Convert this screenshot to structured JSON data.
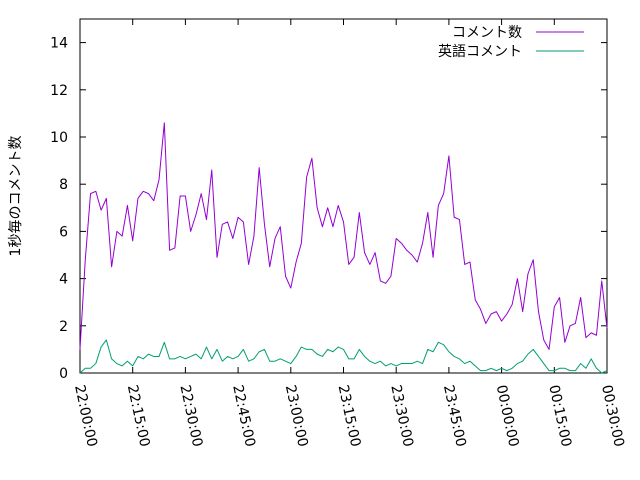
{
  "chart_data": {
    "type": "line",
    "title": "",
    "xlabel": "",
    "ylabel": "1秒毎のコメント数",
    "ylim": [
      0,
      15
    ],
    "y_ticks": [
      "0",
      "2",
      "4",
      "6",
      "8",
      "10",
      "12",
      "14"
    ],
    "x_tick_labels": [
      "22:00:00",
      "22:15:00",
      "22:30:00",
      "22:45:00",
      "23:00:00",
      "23:15:00",
      "23:30:00",
      "23:45:00",
      "00:00:00",
      "00:15:00",
      "00:30:00"
    ],
    "grid": false,
    "legend_position": "top-right",
    "series": [
      {
        "name": "コメント数",
        "color": "#9400d3",
        "values": [
          1.0,
          4.8,
          7.6,
          7.7,
          6.9,
          7.4,
          4.5,
          6.0,
          5.8,
          7.1,
          5.6,
          7.4,
          7.7,
          7.6,
          7.3,
          8.2,
          10.6,
          5.2,
          5.3,
          7.5,
          7.5,
          6.0,
          6.7,
          7.6,
          6.5,
          8.6,
          4.9,
          6.3,
          6.4,
          5.7,
          6.6,
          6.4,
          4.6,
          5.8,
          8.7,
          6.3,
          4.5,
          5.7,
          6.2,
          4.1,
          3.6,
          4.7,
          5.5,
          8.3,
          9.1,
          7.0,
          6.2,
          7.0,
          6.2,
          7.1,
          6.4,
          4.6,
          4.9,
          6.8,
          5.1,
          4.6,
          5.1,
          3.9,
          3.8,
          4.1,
          5.7,
          5.5,
          5.2,
          5.0,
          4.7,
          5.5,
          6.8,
          4.9,
          7.1,
          7.6,
          9.2,
          6.6,
          6.5,
          4.6,
          4.7,
          3.1,
          2.7,
          2.1,
          2.5,
          2.6,
          2.2,
          2.5,
          2.9,
          4.0,
          2.6,
          4.2,
          4.8,
          2.6,
          1.4,
          1.0,
          2.8,
          3.2,
          1.3,
          2.0,
          2.1,
          3.2,
          1.5,
          1.7,
          1.6,
          3.9,
          1.9
        ]
      },
      {
        "name": "英語コメント",
        "color": "#009e73",
        "values": [
          0.0,
          0.2,
          0.2,
          0.4,
          1.1,
          1.4,
          0.6,
          0.4,
          0.3,
          0.5,
          0.3,
          0.7,
          0.6,
          0.8,
          0.7,
          0.7,
          1.3,
          0.6,
          0.6,
          0.7,
          0.6,
          0.7,
          0.8,
          0.6,
          1.1,
          0.6,
          1.0,
          0.5,
          0.7,
          0.6,
          0.7,
          1.0,
          0.5,
          0.6,
          0.9,
          1.0,
          0.5,
          0.5,
          0.6,
          0.5,
          0.4,
          0.7,
          1.1,
          1.0,
          1.0,
          0.8,
          0.7,
          1.0,
          0.9,
          1.1,
          1.0,
          0.6,
          0.6,
          1.0,
          0.7,
          0.5,
          0.4,
          0.5,
          0.3,
          0.4,
          0.3,
          0.4,
          0.4,
          0.4,
          0.5,
          0.4,
          1.0,
          0.9,
          1.3,
          1.2,
          0.9,
          0.7,
          0.6,
          0.4,
          0.5,
          0.3,
          0.1,
          0.1,
          0.2,
          0.1,
          0.2,
          0.1,
          0.2,
          0.4,
          0.5,
          0.8,
          1.0,
          0.7,
          0.4,
          0.1,
          0.1,
          0.2,
          0.2,
          0.1,
          0.1,
          0.4,
          0.2,
          0.6,
          0.2,
          0.0,
          0.1
        ]
      }
    ]
  }
}
